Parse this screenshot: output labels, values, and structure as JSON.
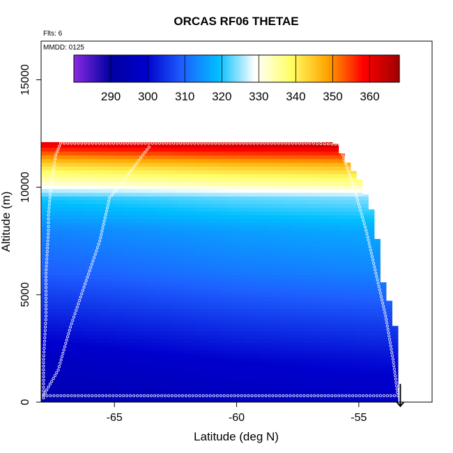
{
  "chart_data": {
    "type": "heatmap",
    "title": "ORCAS RF06 THETAE",
    "xlabel": "Latitude (deg N)",
    "ylabel": "Altitude (m)",
    "note_flights": "Flts: 6",
    "note_date": "MMDD: 0125",
    "xlim": [
      -68.0,
      -52.0
    ],
    "ylim": [
      0,
      16800
    ],
    "x_ticks": [
      -65,
      -60,
      -55
    ],
    "x_tick_labels": [
      "-65",
      "-60",
      "-55"
    ],
    "y_ticks": [
      0,
      5000,
      10000,
      15000
    ],
    "y_tick_labels": [
      "0",
      "5000",
      "10000",
      "15000"
    ],
    "colorbar": {
      "range": [
        280,
        368
      ],
      "ticks": [
        290,
        300,
        310,
        320,
        330,
        340,
        350,
        360
      ],
      "tick_labels": [
        "290",
        "300",
        "310",
        "320",
        "330",
        "340",
        "350",
        "360"
      ],
      "stops": [
        "#8a2be2",
        "#0000a0",
        "#0000cd",
        "#1e5fff",
        "#00bfff",
        "#ffffff",
        "#ffff66",
        "#ffa500",
        "#ff0000",
        "#a00000"
      ]
    },
    "field": {
      "x_extent": [
        -68,
        -53.4
      ],
      "top_altitude_by_lat": [
        {
          "lat": -68.0,
          "alt": 12100
        },
        {
          "lat": -56.0,
          "alt": 12100
        },
        {
          "lat": -55.5,
          "alt": 11200
        },
        {
          "lat": -55.0,
          "alt": 10400
        },
        {
          "lat": -54.5,
          "alt": 9000
        },
        {
          "lat": -54.2,
          "alt": 7300
        },
        {
          "lat": -54.0,
          "alt": 5500
        },
        {
          "lat": -53.7,
          "alt": 4500
        },
        {
          "lat": -53.4,
          "alt": 2900
        }
      ],
      "theta_e_profile": [
        {
          "alt": 0,
          "value": 293
        },
        {
          "alt": 2000,
          "value": 297
        },
        {
          "alt": 4000,
          "value": 303
        },
        {
          "alt": 6000,
          "value": 309
        },
        {
          "alt": 8000,
          "value": 313
        },
        {
          "alt": 9500,
          "value": 320
        },
        {
          "alt": 10200,
          "value": 332
        },
        {
          "alt": 11000,
          "value": 342
        },
        {
          "alt": 12000,
          "value": 360
        }
      ]
    },
    "flight_track": [
      {
        "lat": -67.9,
        "alt": 200
      },
      {
        "lat": -67.9,
        "alt": 2000
      },
      {
        "lat": -67.8,
        "alt": 4000
      },
      {
        "lat": -67.8,
        "alt": 6000
      },
      {
        "lat": -67.7,
        "alt": 8000
      },
      {
        "lat": -67.7,
        "alt": 8700
      },
      {
        "lat": -67.6,
        "alt": 10000
      },
      {
        "lat": -67.4,
        "alt": 11500
      },
      {
        "lat": -67.2,
        "alt": 12050
      },
      {
        "lat": -62.0,
        "alt": 12050
      },
      {
        "lat": -57.0,
        "alt": 12050
      },
      {
        "lat": -55.8,
        "alt": 12000
      },
      {
        "lat": -55.2,
        "alt": 10000
      },
      {
        "lat": -54.7,
        "alt": 8000
      },
      {
        "lat": -54.3,
        "alt": 6000
      },
      {
        "lat": -53.9,
        "alt": 4000
      },
      {
        "lat": -53.6,
        "alt": 2000
      },
      {
        "lat": -53.4,
        "alt": 300
      },
      {
        "lat": -67.9,
        "alt": 300
      },
      {
        "lat": -67.3,
        "alt": 1500
      },
      {
        "lat": -66.8,
        "alt": 3500
      },
      {
        "lat": -66.2,
        "alt": 5500
      },
      {
        "lat": -65.6,
        "alt": 7500
      },
      {
        "lat": -65.2,
        "alt": 9500
      },
      {
        "lat": -64.5,
        "alt": 10500
      },
      {
        "lat": -63.5,
        "alt": 12000
      }
    ],
    "marker": {
      "lat": -53.3,
      "alt": 200
    }
  }
}
